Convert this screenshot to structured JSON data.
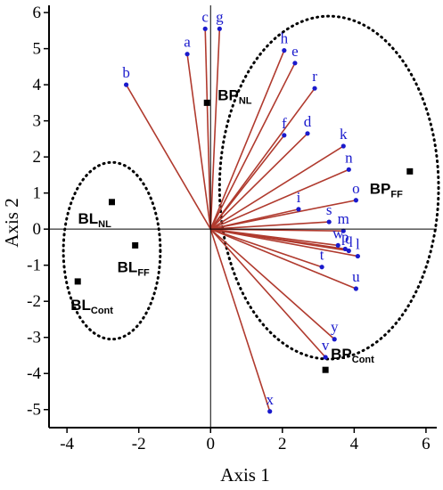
{
  "chart_data": {
    "type": "scatter",
    "xlabel": "Axis 1",
    "ylabel": "Axis 2",
    "xlim": [
      -4.5,
      6.3
    ],
    "ylim": [
      -5.5,
      6.2
    ],
    "x_ticks": [
      "-4",
      "-2",
      "0",
      "2",
      "4",
      "6"
    ],
    "y_ticks": [
      "6",
      "5",
      "4",
      "3",
      "2",
      "1",
      "0",
      "-1",
      "-2",
      "-3",
      "-4",
      "-5"
    ],
    "grid": false,
    "colors": {
      "vector": "#b03a2e",
      "variable_point": "#1a1acc",
      "group_point": "#000000",
      "ellipse": "#000000"
    },
    "variables": [
      {
        "label": "a",
        "x": -0.65,
        "y": 4.85
      },
      {
        "label": "b",
        "x": -2.35,
        "y": 4.0
      },
      {
        "label": "c",
        "x": -0.15,
        "y": 5.55
      },
      {
        "label": "g",
        "x": 0.25,
        "y": 5.55
      },
      {
        "label": "h",
        "x": 2.05,
        "y": 4.95
      },
      {
        "label": "e",
        "x": 2.35,
        "y": 4.6
      },
      {
        "label": "r",
        "x": 2.9,
        "y": 3.9
      },
      {
        "label": "f",
        "x": 2.05,
        "y": 2.6
      },
      {
        "label": "d",
        "x": 2.7,
        "y": 2.65
      },
      {
        "label": "k",
        "x": 3.7,
        "y": 2.3
      },
      {
        "label": "n",
        "x": 3.85,
        "y": 1.65
      },
      {
        "label": "o",
        "x": 4.05,
        "y": 0.8
      },
      {
        "label": "i",
        "x": 2.45,
        "y": 0.55
      },
      {
        "label": "s",
        "x": 3.3,
        "y": 0.2
      },
      {
        "label": "m",
        "x": 3.7,
        "y": -0.05
      },
      {
        "label": "w",
        "x": 3.55,
        "y": -0.45
      },
      {
        "label": "q",
        "x": 3.85,
        "y": -0.6
      },
      {
        "label": "l",
        "x": 4.1,
        "y": -0.75
      },
      {
        "label": "p",
        "x": 3.75,
        "y": -0.55
      },
      {
        "label": "t",
        "x": 3.1,
        "y": -1.05
      },
      {
        "label": "u",
        "x": 4.05,
        "y": -1.65
      },
      {
        "label": "y",
        "x": 3.45,
        "y": -3.05
      },
      {
        "label": "v",
        "x": 3.2,
        "y": -3.55
      },
      {
        "label": "x",
        "x": 1.65,
        "y": -5.05
      }
    ],
    "groups": [
      {
        "label": "BP",
        "sub": "NL",
        "x": -0.1,
        "y": 3.5
      },
      {
        "label": "BP",
        "sub": "FF",
        "x": 5.55,
        "y": 1.6
      },
      {
        "label": "BP",
        "sub": "Cont",
        "x": 3.2,
        "y": -3.9
      },
      {
        "label": "BL",
        "sub": "NL",
        "x": -2.75,
        "y": 0.75
      },
      {
        "label": "BL",
        "sub": "FF",
        "x": -2.1,
        "y": -0.45
      },
      {
        "label": "BL",
        "sub": "Cont",
        "x": -3.7,
        "y": -1.45
      }
    ],
    "ellipses": [
      {
        "cx": -2.75,
        "cy": -0.6,
        "rx": 1.35,
        "ry": 2.45
      },
      {
        "cx": 3.3,
        "cy": 1.15,
        "rx": 3.05,
        "ry": 4.75
      }
    ]
  }
}
